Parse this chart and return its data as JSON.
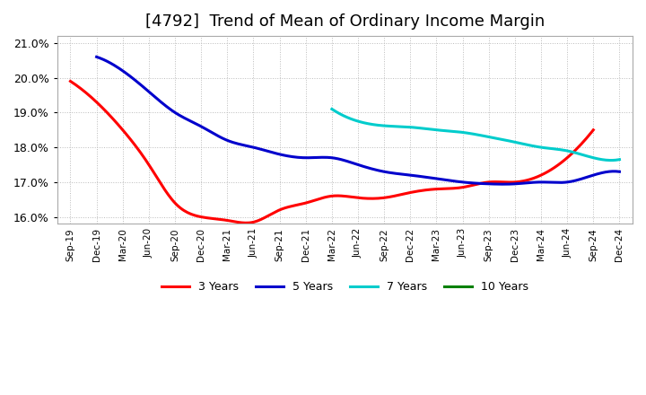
{
  "title": "[4792]  Trend of Mean of Ordinary Income Margin",
  "ylim": [
    0.158,
    0.212
  ],
  "yticks": [
    0.16,
    0.17,
    0.18,
    0.19,
    0.2,
    0.21
  ],
  "background_color": "#ffffff",
  "plot_bg_color": "#ffffff",
  "grid_color": "#bbbbbb",
  "title_fontsize": 13,
  "xtick_labels": [
    "Sep-19",
    "Dec-19",
    "Mar-20",
    "Jun-20",
    "Sep-20",
    "Dec-20",
    "Mar-21",
    "Jun-21",
    "Sep-21",
    "Dec-21",
    "Mar-22",
    "Jun-22",
    "Sep-22",
    "Dec-22",
    "Mar-23",
    "Jun-23",
    "Sep-23",
    "Dec-23",
    "Mar-24",
    "Jun-24",
    "Sep-24",
    "Dec-24"
  ],
  "series": [
    {
      "name": "3 Years",
      "color": "#ff0000",
      "xi": [
        0,
        1,
        2,
        3,
        4,
        5,
        6,
        7,
        8,
        9,
        10,
        11,
        12,
        13,
        14,
        15,
        16,
        17,
        18,
        19,
        20
      ],
      "y": [
        0.199,
        0.193,
        0.185,
        0.175,
        0.164,
        0.16,
        0.159,
        0.1585,
        0.162,
        0.164,
        0.166,
        0.1655,
        0.1655,
        0.167,
        0.168,
        0.1685,
        0.17,
        0.17,
        0.172,
        0.177,
        0.185
      ]
    },
    {
      "name": "5 Years",
      "color": "#0000cc",
      "xi": [
        1,
        2,
        3,
        4,
        5,
        6,
        7,
        8,
        9,
        10,
        11,
        12,
        13,
        14,
        15,
        16,
        17,
        18,
        19,
        20,
        21
      ],
      "y": [
        0.206,
        0.202,
        0.196,
        0.19,
        0.186,
        0.182,
        0.18,
        0.178,
        0.177,
        0.177,
        0.175,
        0.173,
        0.172,
        0.171,
        0.17,
        0.1695,
        0.1695,
        0.17,
        0.17,
        0.172,
        0.173
      ]
    },
    {
      "name": "7 Years",
      "color": "#00cccc",
      "xi": [
        10,
        11,
        12,
        13,
        14,
        15,
        16,
        17,
        18,
        19,
        20,
        21
      ],
      "y": [
        0.191,
        0.1875,
        0.1862,
        0.1858,
        0.185,
        0.1843,
        0.183,
        0.1815,
        0.18,
        0.179,
        0.177,
        0.1765
      ]
    },
    {
      "name": "10 Years",
      "color": "#008000",
      "xi": [],
      "y": []
    }
  ],
  "legend_order": [
    "3 Years",
    "5 Years",
    "7 Years",
    "10 Years"
  ],
  "legend_colors": [
    "#ff0000",
    "#0000cc",
    "#00cccc",
    "#008000"
  ]
}
